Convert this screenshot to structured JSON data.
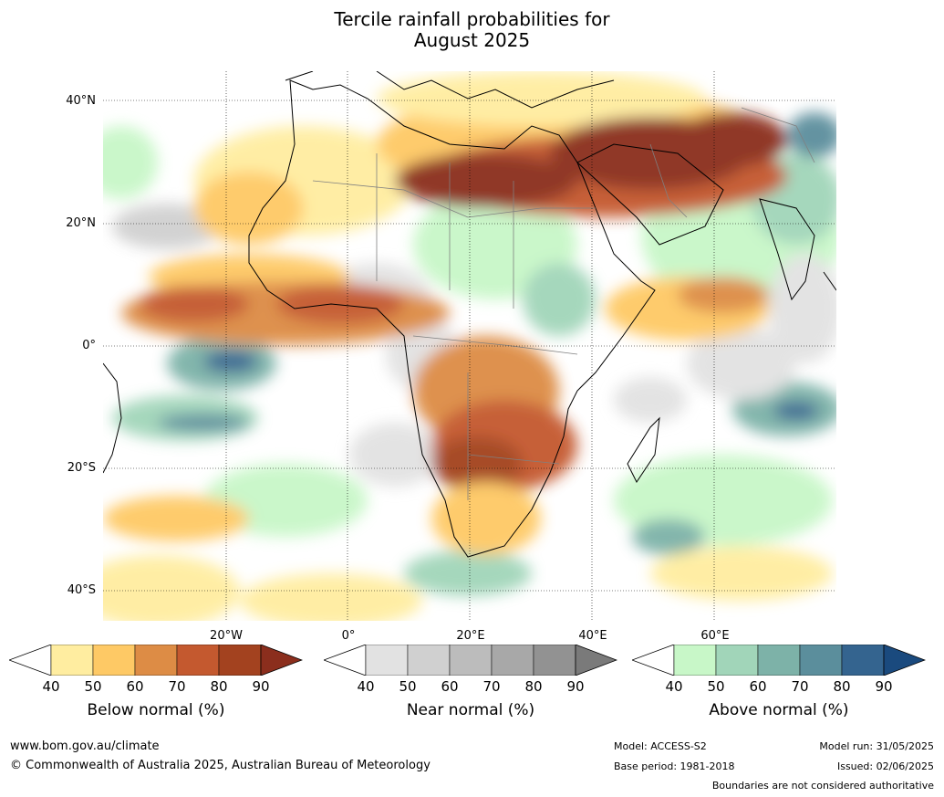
{
  "title_line1": "Tercile rainfall probabilities for",
  "title_line2": "August 2025",
  "map": {
    "lat_labels": [
      "40°N",
      "20°N",
      "0°",
      "20°S",
      "40°S"
    ],
    "lon_labels": [
      "20°W",
      "0°",
      "20°E",
      "40°E",
      "60°E"
    ],
    "colors": {
      "ocean_white": "#ffffff",
      "below": [
        "#ffeda0",
        "#fec965",
        "#dd8c45",
        "#c4592f",
        "#a3421f",
        "#8b2e1d"
      ],
      "near": [
        "#e2e2e2",
        "#d0d0d0",
        "#bcbcbc",
        "#a8a8a8",
        "#929292",
        "#7a7a7a"
      ],
      "above": [
        "#c8f7c8",
        "#a1d5b9",
        "#7db2a8",
        "#5b8e9c",
        "#34648f",
        "#1a4a7e"
      ]
    }
  },
  "legends": [
    {
      "id": "below",
      "title": "Below normal (%)",
      "ticks": [
        "40",
        "50",
        "60",
        "70",
        "80",
        "90"
      ]
    },
    {
      "id": "near",
      "title": "Near normal (%)",
      "ticks": [
        "40",
        "50",
        "60",
        "70",
        "80",
        "90"
      ]
    },
    {
      "id": "above",
      "title": "Above normal (%)",
      "ticks": [
        "40",
        "50",
        "60",
        "70",
        "80",
        "90"
      ]
    }
  ],
  "footer": {
    "website": "www.bom.gov.au/climate",
    "copyright": "© Commonwealth of Australia 2025, Australian Bureau of Meteorology",
    "model": "Model: ACCESS-S2",
    "base_period": "Base period: 1981-2018",
    "model_run": "Model run: 31/05/2025",
    "issued": "Issued: 02/06/2025",
    "boundaries": "Boundaries are not considered authoritative"
  }
}
